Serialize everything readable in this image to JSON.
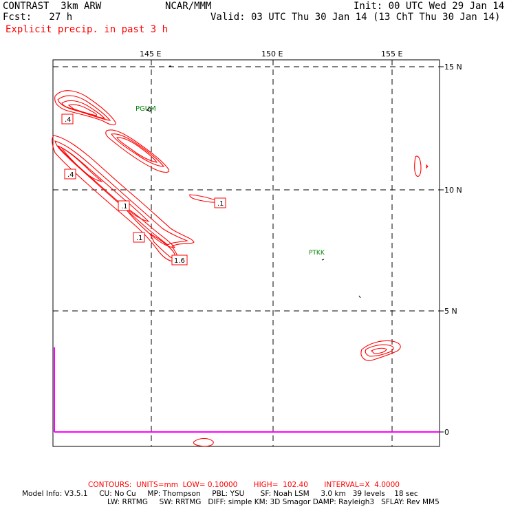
{
  "header": {
    "model": "CONTRAST  3km ARW",
    "forecast": "Fcst:   27 h",
    "org": "NCAR/MMM",
    "init": "Init: 00 UTC Wed 29 Jan 14",
    "valid": "Valid: 03 UTC Thu 30 Jan 14 (13 ChT Thu 30 Jan 14)",
    "field": "Explicit precip. in past 3 h"
  },
  "map": {
    "lon_labels": [
      "145 E",
      "150 E",
      "155 E"
    ],
    "lat_labels": [
      "15 N",
      "10 N",
      "5 N",
      "0"
    ],
    "stations": [
      {
        "id": "PGUM"
      },
      {
        "id": "PTKK"
      }
    ],
    "contour_labels": [
      ".4",
      ".4",
      ".1",
      ".1",
      ".1",
      "1.6"
    ],
    "colors": {
      "contour": "#ff0000",
      "grid": "#000000",
      "station": "#008000",
      "magenta_line": "#ff00ff"
    }
  },
  "footer": {
    "contours": "CONTOURS:  UNITS=mm  LOW= 0.10000       HIGH=  102.40       INTERVAL=X  4.0000",
    "model_info_1": "Model Info: V3.5.1     CU: No Cu     MP: Thompson     PBL: YSU       SF: Noah LSM     3.0 km   39 levels    18 sec",
    "model_info_2": "LW: RRTMG     SW: RRTMG   DIFF: simple KM: 3D Smagor DAMP: Rayleigh3   SFLAY: Rev MM5"
  }
}
